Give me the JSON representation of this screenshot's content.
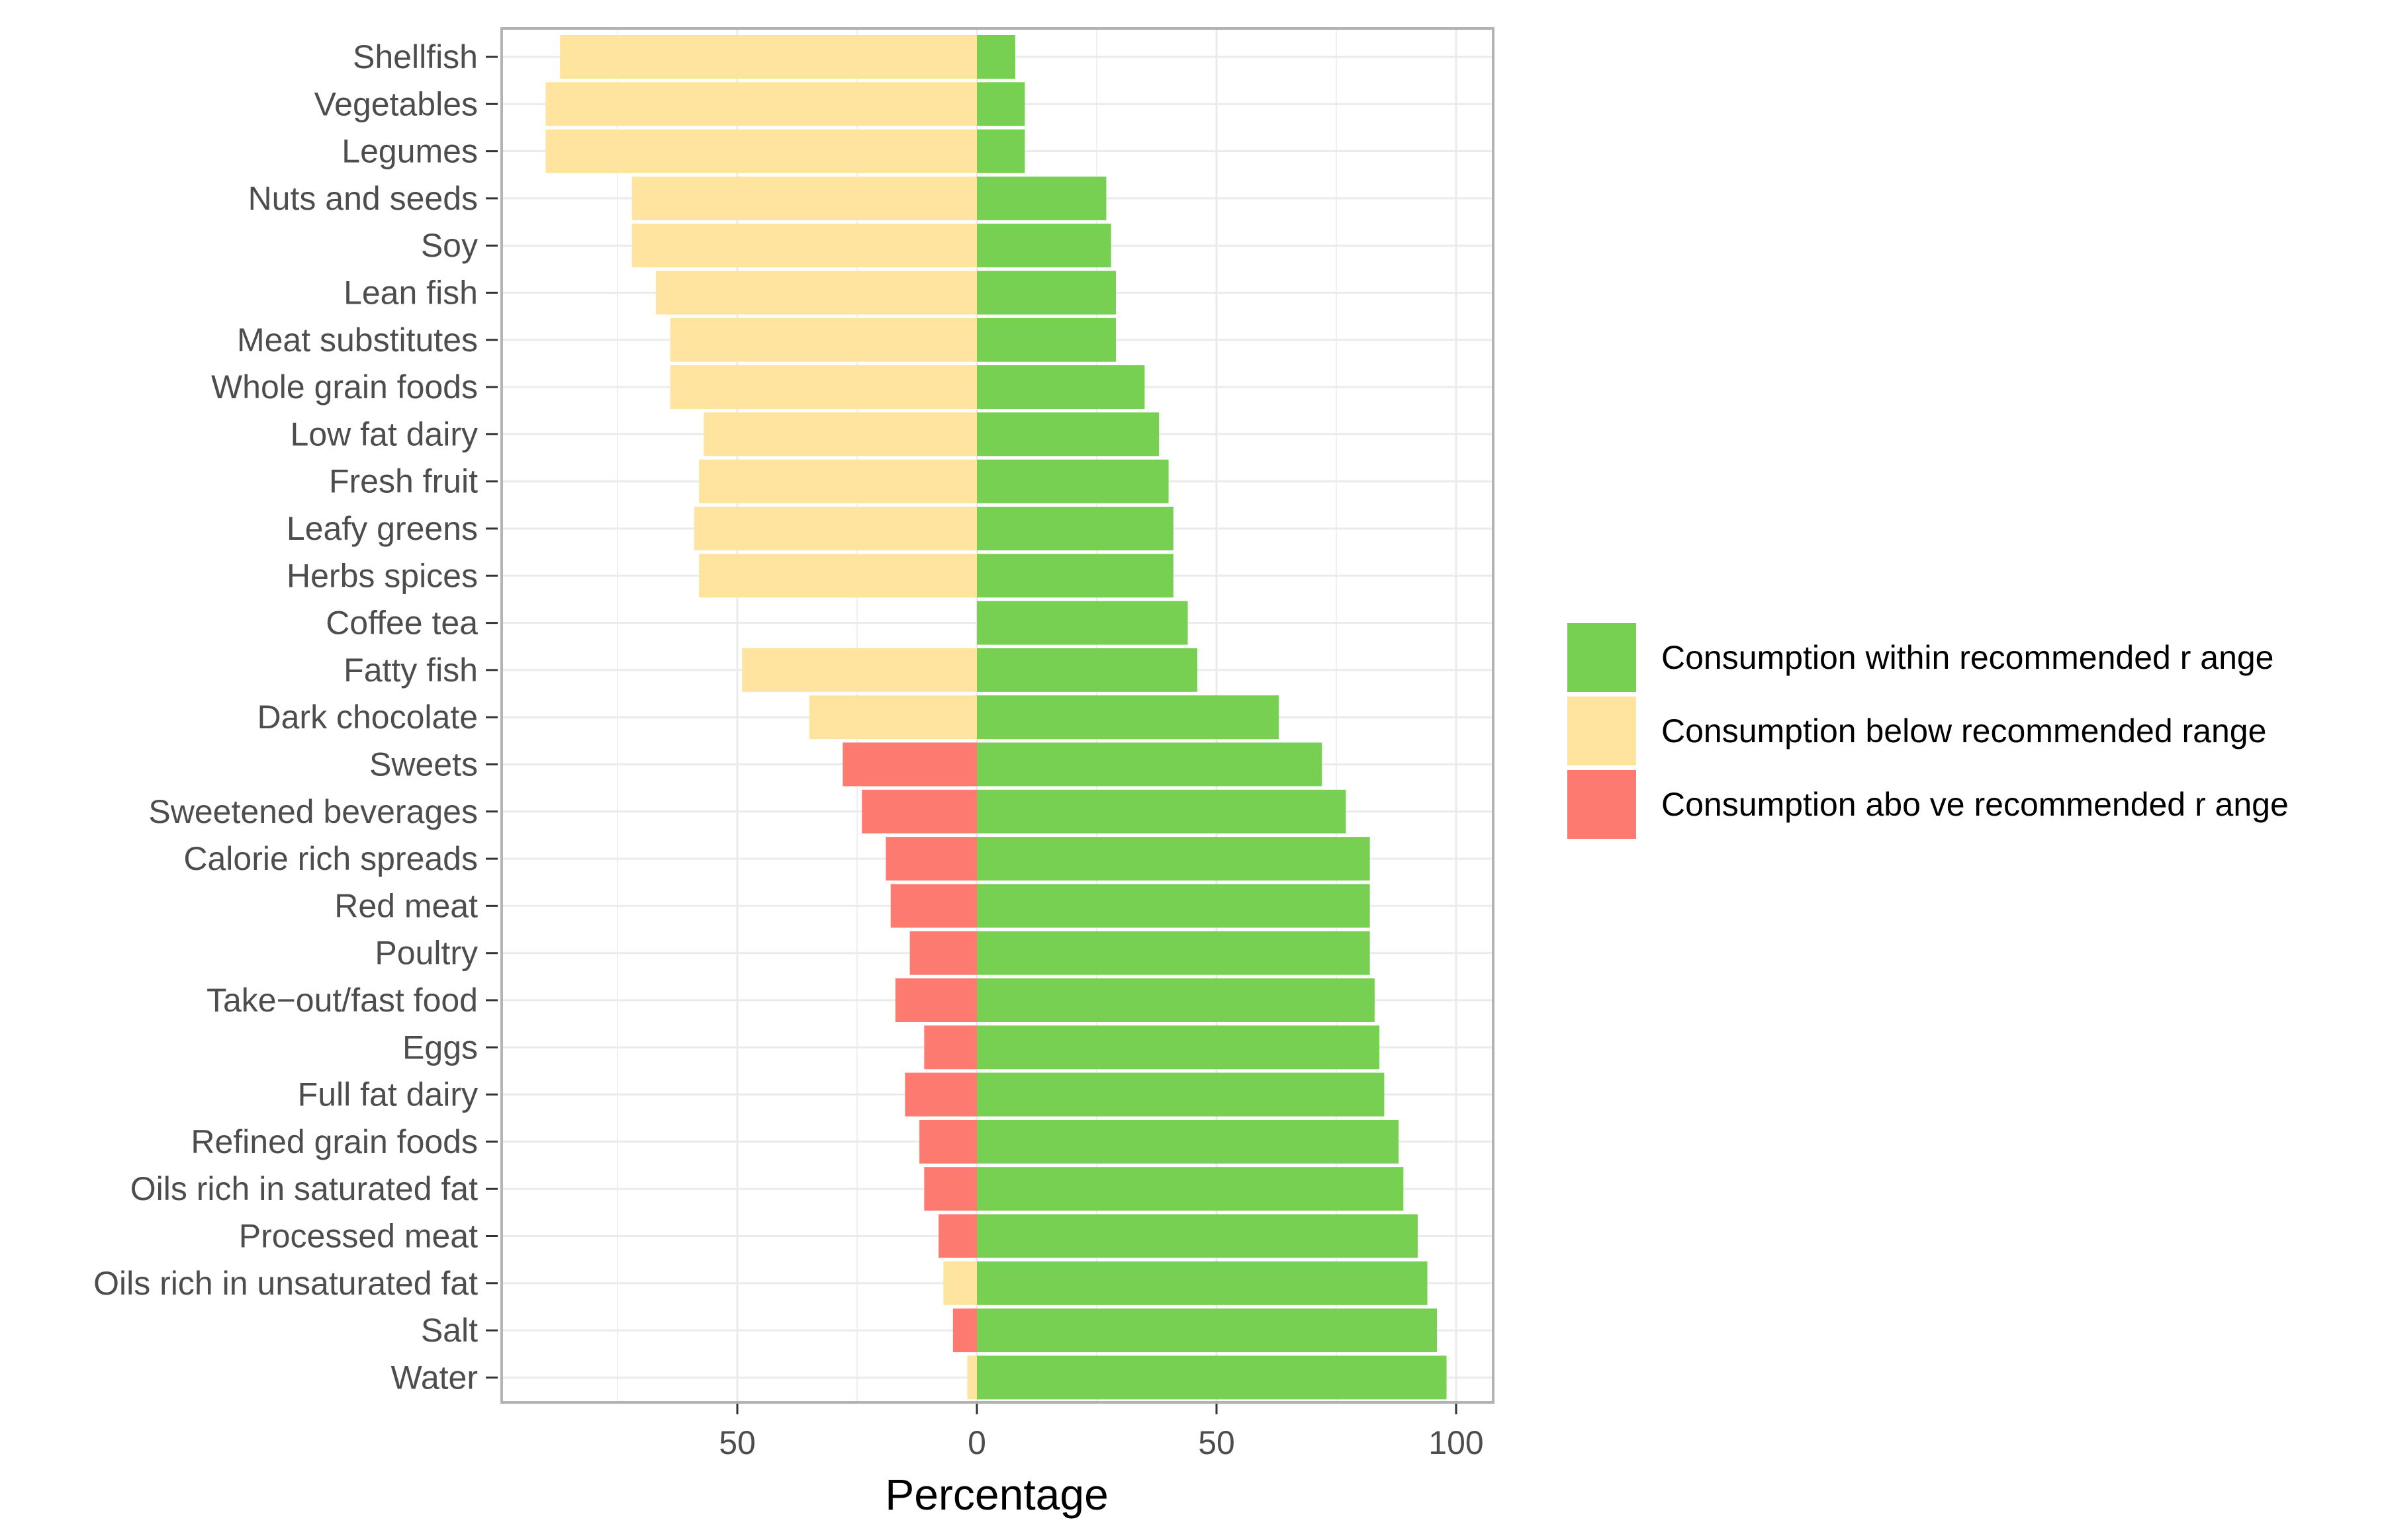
{
  "chart_data": {
    "type": "bar",
    "orientation": "horizontal-diverging",
    "title": "",
    "xlabel": "Percentage",
    "ylabel": "",
    "xlim": [
      -100,
      107
    ],
    "x_ticks": [
      -50,
      0,
      50,
      100
    ],
    "x_tick_labels": [
      "50",
      "0",
      "50",
      "100"
    ],
    "grid": true,
    "legend_position": "right",
    "colors": {
      "within": "#77D052",
      "below": "#FEE49F",
      "above": "#FD7A70",
      "grid": "#ebebeb",
      "panel_border": "#b3b3b3"
    },
    "categories": [
      "Shellfish",
      "Vegetables",
      "Legumes",
      "Nuts and seeds",
      "Soy",
      "Lean fish",
      "Meat substitutes",
      "Whole grain foods",
      "Low fat dairy",
      "Fresh fruit",
      "Leafy greens",
      "Herbs spices",
      "Coffee tea",
      "Fatty fish",
      "Dark chocolate",
      "Sweets",
      "Sweetened beverages",
      "Calorie rich spreads",
      "Red meat",
      "Poultry",
      "Take−out/fast food",
      "Eggs",
      "Full fat dairy",
      "Refined grain foods",
      "Oils rich in saturated fat",
      "Processed meat",
      "Oils rich in unsaturated fat",
      "Salt",
      "Water"
    ],
    "series": [
      {
        "name": "Consumption within recommended range",
        "key": "within",
        "values": [
          8,
          10,
          10,
          27,
          28,
          29,
          29,
          35,
          38,
          40,
          41,
          41,
          44,
          46,
          63,
          72,
          77,
          82,
          82,
          82,
          83,
          84,
          85,
          88,
          89,
          92,
          94,
          96,
          98
        ]
      },
      {
        "name": "Consumption below recommended range",
        "key": "below",
        "values": [
          87,
          90,
          90,
          72,
          72,
          67,
          64,
          64,
          57,
          58,
          59,
          58,
          0,
          49,
          35,
          0,
          0,
          0,
          0,
          0,
          0,
          0,
          0,
          0,
          0,
          0,
          7,
          0,
          2
        ]
      },
      {
        "name": "Consumption above recommended range",
        "key": "above",
        "values": [
          0,
          0,
          0,
          0,
          0,
          0,
          0,
          0,
          0,
          0,
          0,
          0,
          0,
          0,
          0,
          28,
          24,
          19,
          18,
          14,
          17,
          11,
          15,
          12,
          11,
          8,
          0,
          5,
          0
        ]
      }
    ],
    "legend": [
      "Consumption within recommended r ange",
      "Consumption below recommended range",
      "Consumption abo ve recommended r ange"
    ]
  }
}
